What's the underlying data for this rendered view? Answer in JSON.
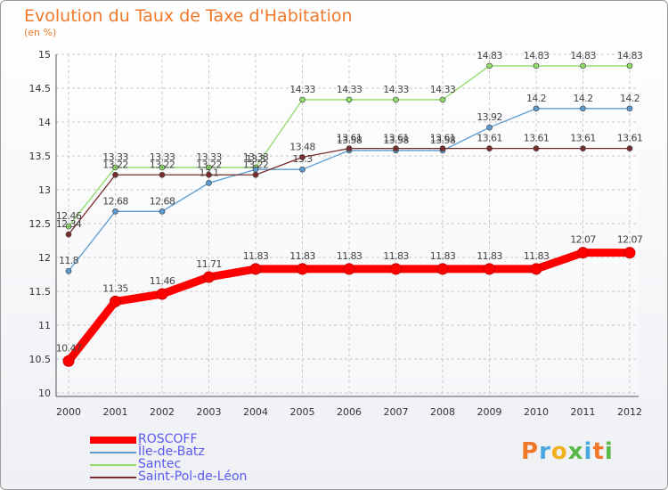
{
  "title": "Evolution du Taux de Taxe d'Habitation",
  "subtitle": "(en %)",
  "logo_text": "Proxiti",
  "chart_data": {
    "type": "line",
    "title": "Evolution du Taux de Taxe d'Habitation",
    "ylabel": "(en %)",
    "xlabel": "",
    "x": [
      "2000",
      "2001",
      "2002",
      "2003",
      "2004",
      "2005",
      "2006",
      "2007",
      "2008",
      "2009",
      "2010",
      "2011",
      "2012"
    ],
    "ylim": [
      10,
      15
    ],
    "yticks": [
      "10",
      "10.5",
      "11",
      "11.5",
      "12",
      "12.5",
      "13",
      "13.5",
      "14",
      "14.5",
      "15"
    ],
    "grid": true,
    "legend_position": "bottom-left",
    "series": [
      {
        "name": "ROSCOFF",
        "color": "#ff0000",
        "values": [
          10.47,
          11.35,
          11.46,
          11.71,
          11.83,
          11.83,
          11.83,
          11.83,
          11.83,
          11.83,
          11.83,
          12.07,
          12.07
        ],
        "labels": [
          "10.47",
          "11.35",
          "11.46",
          "11.71",
          "11.83",
          "11.83",
          "11.83",
          "11.83",
          "11.83",
          "11.83",
          "11.83",
          "12.07",
          "12.07"
        ]
      },
      {
        "name": "Île-de-Batz",
        "color": "#5b9bd0",
        "values": [
          11.8,
          12.68,
          12.68,
          13.1,
          13.3,
          13.3,
          13.58,
          13.58,
          13.58,
          13.92,
          14.2,
          14.2,
          14.2
        ],
        "labels": [
          "11.8",
          "12.68",
          "12.68",
          "13.1",
          "13.3",
          "13.3",
          "13.58",
          "13.58",
          "13.58",
          "13.92",
          "14.2",
          "14.2",
          "14.2"
        ]
      },
      {
        "name": "Santec",
        "color": "#90dc68",
        "values": [
          12.46,
          13.33,
          13.33,
          13.33,
          13.33,
          14.33,
          14.33,
          14.33,
          14.33,
          14.83,
          14.83,
          14.83,
          14.83
        ],
        "labels": [
          "12.46",
          "13.33",
          "13.33",
          "13.33",
          "13.33",
          "14.33",
          "14.33",
          "14.33",
          "14.33",
          "14.83",
          "14.83",
          "14.83",
          "14.83"
        ]
      },
      {
        "name": "Saint-Pol-de-Léon",
        "color": "#7a2c2c",
        "values": [
          12.34,
          13.22,
          13.22,
          13.22,
          13.22,
          13.48,
          13.61,
          13.61,
          13.61,
          13.61,
          13.61,
          13.61,
          13.61
        ],
        "labels": [
          "12.34",
          "13.22",
          "13.22",
          "13.22",
          "13.22",
          "13.48",
          "13.61",
          "13.61",
          "13.61",
          "13.61",
          "13.61",
          "13.61",
          "13.61"
        ]
      }
    ]
  }
}
